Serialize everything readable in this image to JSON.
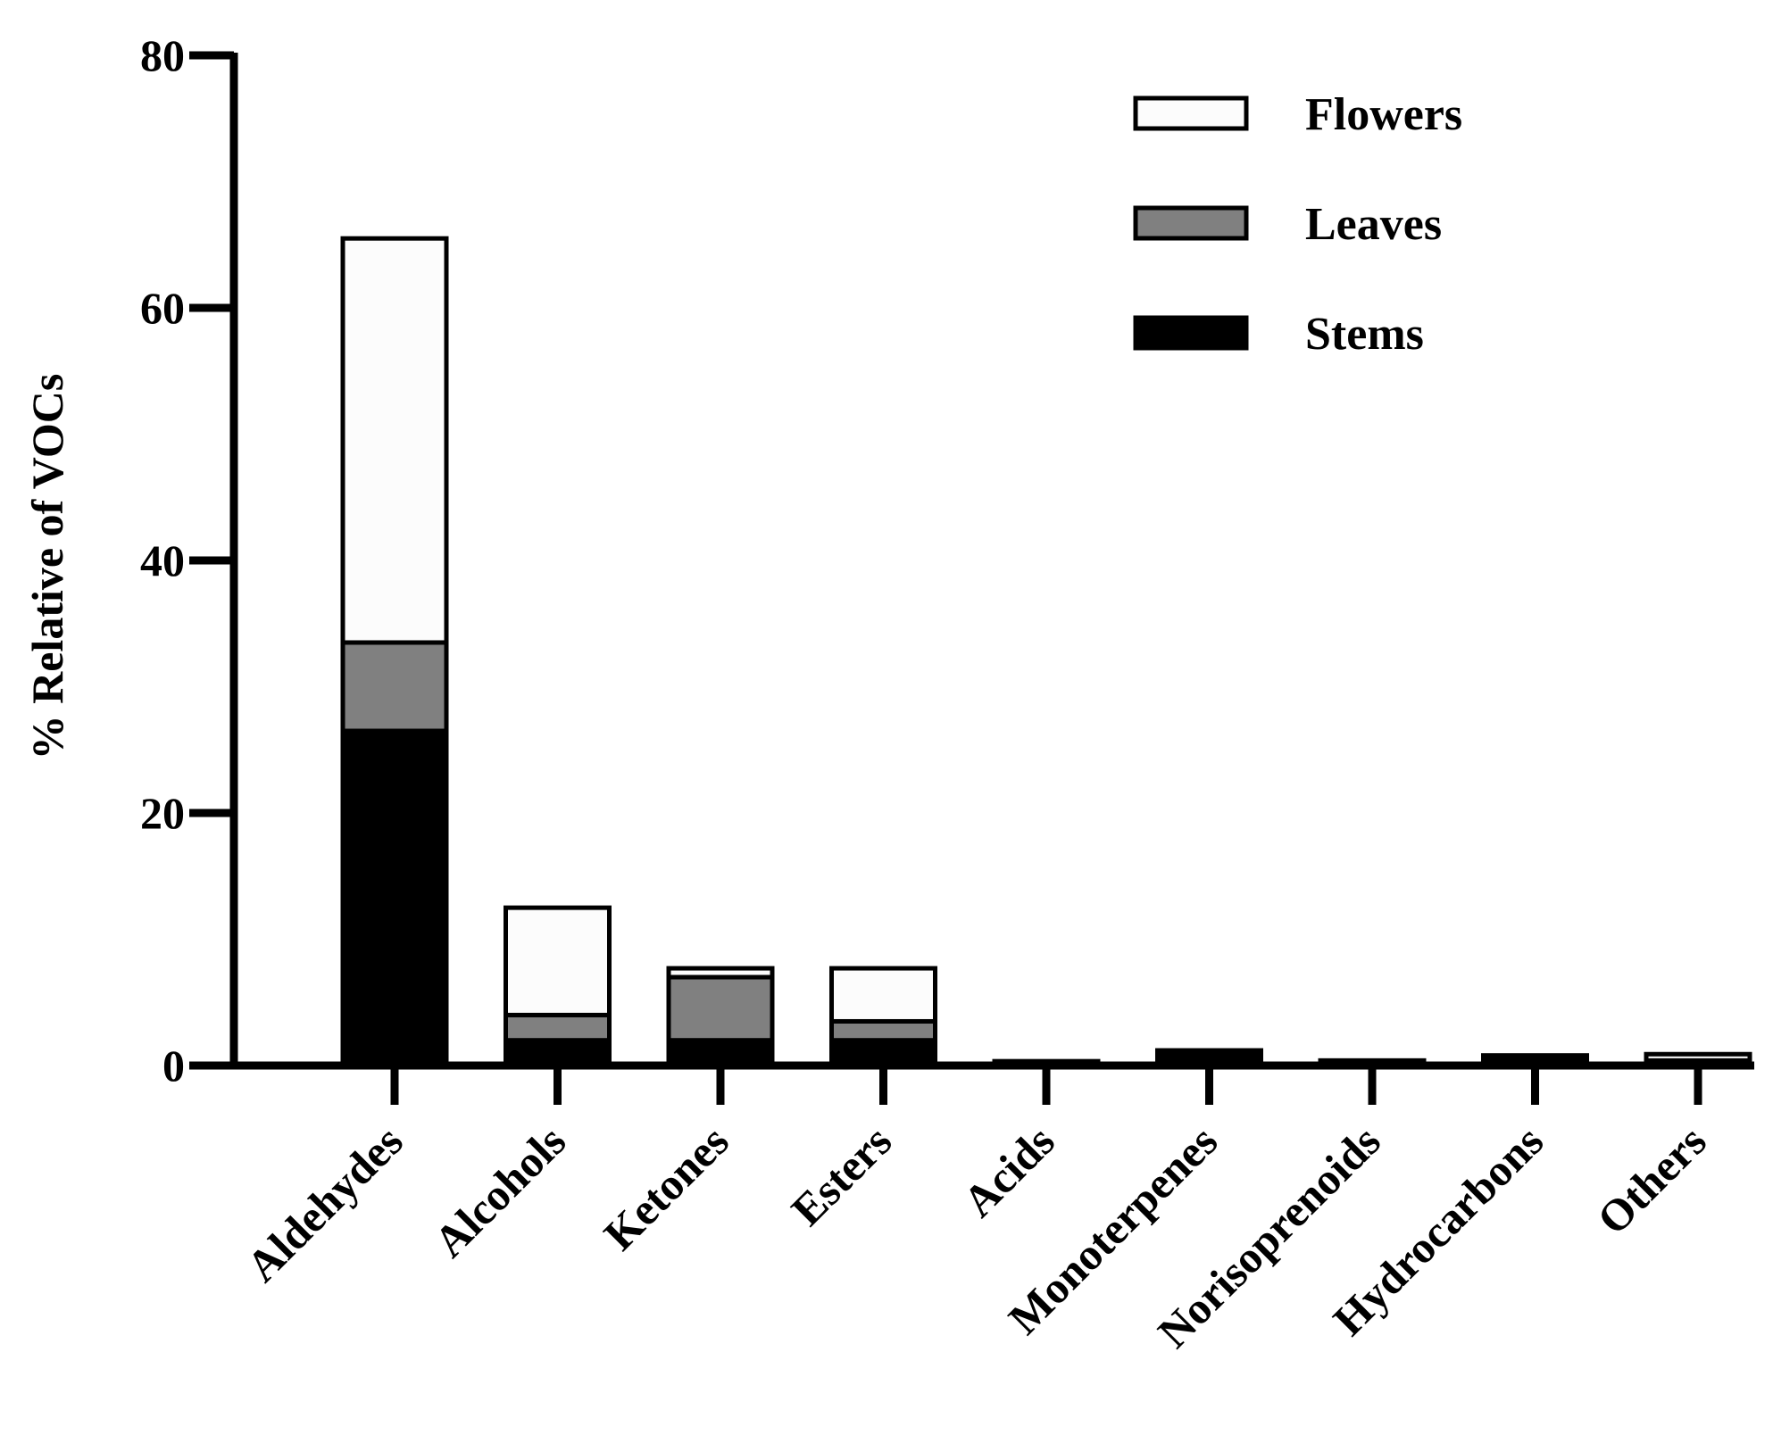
{
  "chart_data": {
    "type": "bar",
    "stacked": true,
    "title": "",
    "xlabel": "",
    "ylabel": "% Relative of VOCs",
    "ylim": [
      0,
      80
    ],
    "yticks": [
      0,
      20,
      40,
      60,
      80
    ],
    "categories": [
      "Aldehydes",
      "Alcohols",
      "Ketones",
      "Esters",
      "Acids",
      "Monoterpenes",
      "Norisoprenoids",
      "Hydrocarbons",
      "Others"
    ],
    "series": [
      {
        "name": "Stems",
        "color": "#000000",
        "values": [
          26.5,
          2.0,
          2.0,
          2.0,
          0.1,
          0.8,
          0.1,
          0.3,
          0.2
        ]
      },
      {
        "name": "Leaves",
        "color": "#808080",
        "values": [
          7.0,
          2.0,
          5.0,
          1.5,
          0.1,
          0.2,
          0.1,
          0.2,
          0.2
        ]
      },
      {
        "name": "Flowers",
        "color": "#fcfcfc",
        "values": [
          32.0,
          8.5,
          0.7,
          4.2,
          0.1,
          0.2,
          0.2,
          0.3,
          0.5
        ]
      }
    ],
    "legend": {
      "position": "top-right",
      "order": [
        "Flowers",
        "Leaves",
        "Stems"
      ]
    }
  }
}
